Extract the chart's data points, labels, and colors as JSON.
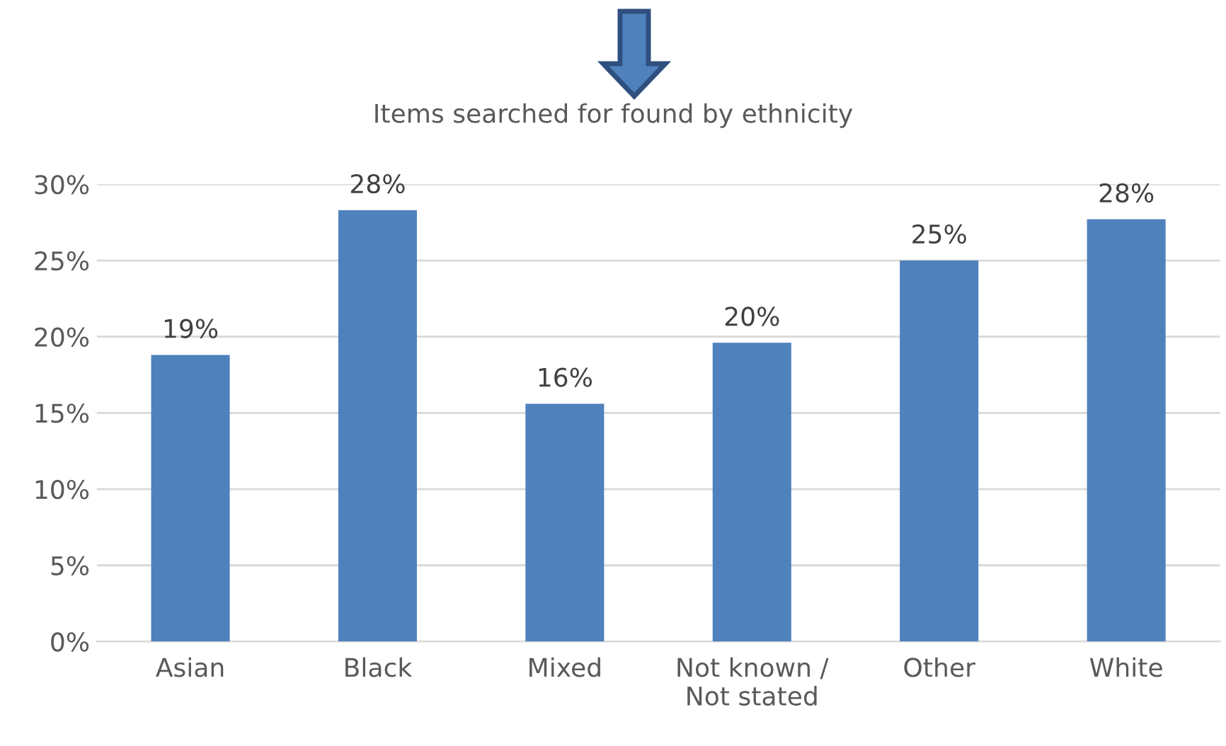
{
  "chart_data": {
    "type": "bar",
    "title": "Items searched for found by ethnicity",
    "categories": [
      "Asian",
      "Black",
      "Mixed",
      "Not known /\nNot stated",
      "Other",
      "White"
    ],
    "values": [
      18.8,
      28.3,
      15.6,
      19.6,
      25.0,
      27.7
    ],
    "value_labels": [
      "19%",
      "28%",
      "16%",
      "20%",
      "25%",
      "28%"
    ],
    "color": "#4f81bd",
    "ylim": [
      0,
      30
    ],
    "yticks": [
      {
        "value": 0,
        "label": "0%"
      },
      {
        "value": 5,
        "label": "5%"
      },
      {
        "value": 10,
        "label": "10%"
      },
      {
        "value": 15,
        "label": "15%"
      },
      {
        "value": 20,
        "label": "20%"
      },
      {
        "value": 25,
        "label": "25%"
      },
      {
        "value": 30,
        "label": "30%"
      }
    ],
    "grid": "y",
    "legend": false
  }
}
